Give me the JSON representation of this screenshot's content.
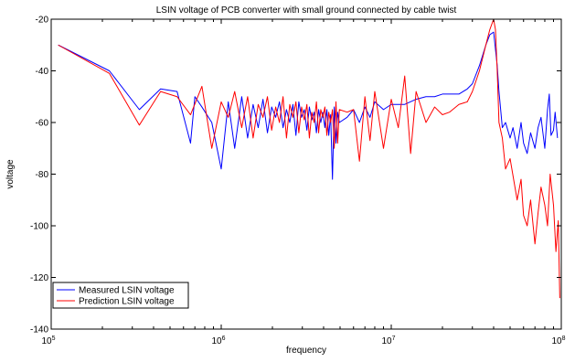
{
  "chart_data": {
    "type": "line",
    "title": "LSIN voltage of PCB converter with small ground connected by cable twist",
    "xlabel": "frequency",
    "ylabel": "voltage",
    "xscale": "log",
    "xlim": [
      100000,
      100000000
    ],
    "ylim": [
      -140,
      -20
    ],
    "x_ticks": [
      100000,
      1000000,
      10000000,
      100000000
    ],
    "x_tick_labels": [
      {
        "base": "10",
        "exp": "5"
      },
      {
        "base": "10",
        "exp": "6"
      },
      {
        "base": "10",
        "exp": "7"
      },
      {
        "base": "10",
        "exp": "8"
      }
    ],
    "y_ticks": [
      -140,
      -120,
      -100,
      -80,
      -60,
      -40,
      -20
    ],
    "y_tick_labels": [
      "-140",
      "-120",
      "-100",
      "-80",
      "-60",
      "-40",
      "-20"
    ],
    "grid": false,
    "legend_position": "bottom-left",
    "series": [
      {
        "name": "Measured LSIN voltage",
        "color": "#0000ff",
        "x": [
          110000,
          220000,
          330000,
          440000,
          550000,
          660000,
          700000,
          770000,
          880000,
          1000000,
          1100000,
          1200000,
          1320000,
          1430000,
          1540000,
          1650000,
          1760000,
          1870000,
          1980000,
          2090000,
          2200000,
          2310000,
          2420000,
          2530000,
          2640000,
          2750000,
          2860000,
          2970000,
          3080000,
          3190000,
          3300000,
          3410000,
          3520000,
          3630000,
          3740000,
          3850000,
          3960000,
          4070000,
          4180000,
          4290000,
          4400000,
          4510000,
          4620000,
          4730000,
          4840000,
          4950000,
          5500000,
          6000000,
          6500000,
          7000000,
          7500000,
          8000000,
          9000000,
          10000000,
          12000000,
          14000000,
          16000000,
          18000000,
          20000000,
          22000000,
          25000000,
          28000000,
          30000000,
          33000000,
          36000000,
          38000000,
          40000000,
          42000000,
          43000000,
          44000000,
          45000000,
          47000000,
          50000000,
          52000000,
          55000000,
          58000000,
          60000000,
          63000000,
          66000000,
          70000000,
          73000000,
          76000000,
          80000000,
          83000000,
          85000000,
          87000000,
          90000000,
          92000000,
          95000000
        ],
        "y": [
          -30,
          -40,
          -55,
          -47,
          -48,
          -68,
          -50,
          -54,
          -60,
          -78,
          -52,
          -70,
          -50,
          -66,
          -53,
          -62,
          -51,
          -64,
          -54,
          -58,
          -52,
          -62,
          -55,
          -60,
          -53,
          -65,
          -52,
          -58,
          -55,
          -63,
          -54,
          -59,
          -56,
          -64,
          -55,
          -60,
          -56,
          -62,
          -55,
          -65,
          -57,
          -82,
          -54,
          -68,
          -56,
          -60,
          -58,
          -55,
          -60,
          -54,
          -58,
          -52,
          -55,
          -53,
          -53,
          -51,
          -50,
          -50,
          -49,
          -49,
          -49,
          -47,
          -45,
          -38,
          -30,
          -26,
          -25,
          -38,
          -48,
          -55,
          -62,
          -60,
          -66,
          -62,
          -70,
          -60,
          -68,
          -72,
          -64,
          -70,
          -62,
          -58,
          -70,
          -55,
          -49,
          -65,
          -63,
          -56,
          -66
        ]
      },
      {
        "name": "Prediction LSIN voltage",
        "color": "#ff0000",
        "x": [
          110000,
          220000,
          330000,
          440000,
          550000,
          660000,
          770000,
          880000,
          1000000,
          1100000,
          1200000,
          1320000,
          1430000,
          1540000,
          1650000,
          1760000,
          1870000,
          1980000,
          2090000,
          2200000,
          2310000,
          2420000,
          2530000,
          2640000,
          2750000,
          2860000,
          2970000,
          3080000,
          3190000,
          3300000,
          3410000,
          3520000,
          3630000,
          3740000,
          3850000,
          3960000,
          4070000,
          4180000,
          4290000,
          4400000,
          4510000,
          4620000,
          4730000,
          4840000,
          4950000,
          5500000,
          6000000,
          6500000,
          7000000,
          7500000,
          8000000,
          9000000,
          10000000,
          11000000,
          12000000,
          13000000,
          14000000,
          16000000,
          18000000,
          20000000,
          22000000,
          25000000,
          28000000,
          30000000,
          33000000,
          36000000,
          38000000,
          40000000,
          41000000,
          42000000,
          43000000,
          45000000,
          47000000,
          50000000,
          55000000,
          58000000,
          60000000,
          63000000,
          66000000,
          70000000,
          73000000,
          76000000,
          80000000,
          83000000,
          86000000,
          90000000,
          93000000,
          96000000,
          98000000
        ],
        "y": [
          -30,
          -41,
          -61,
          -48,
          -50,
          -57,
          -46,
          -70,
          -52,
          -58,
          -48,
          -62,
          -50,
          -66,
          -53,
          -58,
          -50,
          -63,
          -54,
          -60,
          -50,
          -66,
          -53,
          -58,
          -52,
          -64,
          -54,
          -59,
          -53,
          -66,
          -56,
          -60,
          -52,
          -64,
          -55,
          -58,
          -54,
          -65,
          -56,
          -60,
          -55,
          -70,
          -52,
          -68,
          -55,
          -56,
          -55,
          -75,
          -50,
          -67,
          -48,
          -70,
          -51,
          -62,
          -42,
          -72,
          -48,
          -60,
          -54,
          -57,
          -56,
          -53,
          -52,
          -48,
          -40,
          -30,
          -24,
          -20,
          -24,
          -40,
          -60,
          -66,
          -78,
          -74,
          -90,
          -82,
          -96,
          -100,
          -90,
          -107,
          -95,
          -85,
          -92,
          -100,
          -80,
          -92,
          -110,
          -98,
          -128
        ]
      }
    ]
  }
}
